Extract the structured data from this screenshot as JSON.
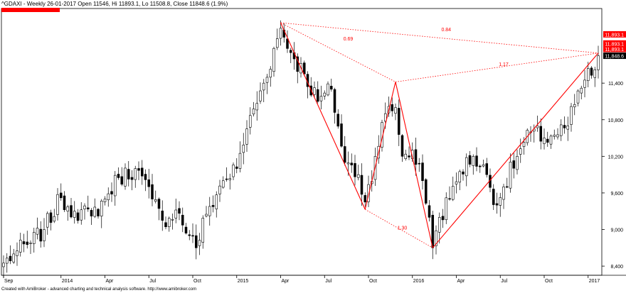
{
  "header": {
    "title": "^GDAXI - Weekly 26-01-2017 Open 11546, Hi 11893.1, Lo 11508.8, Close 11848.6 (1.9%)"
  },
  "footer": {
    "credit": "Created with AmiBroker - advanced charting and technical analysis software. http://www.amibroker.com"
  },
  "colors": {
    "up": "#ffffff",
    "down": "#000000",
    "pattern": "#ff0000",
    "price_tag_bg": "#000000",
    "price_tag_fg": "#ffffff"
  },
  "chart_data": {
    "type": "candlestick",
    "title": "^GDAXI - Weekly",
    "ylim": [
      8250,
      12600
    ],
    "y_ticks": [
      8400,
      9000,
      9600,
      10200,
      10800,
      11400
    ],
    "y_tick_labels": [
      "8,400",
      "9,000",
      "9,600",
      "10,200",
      "10,800",
      "11,400"
    ],
    "x_labels": [
      {
        "label": "Sep",
        "t": 0
      },
      {
        "label": "2014",
        "t": 17
      },
      {
        "label": "Apr",
        "t": 30
      },
      {
        "label": "Jul",
        "t": 43
      },
      {
        "label": "Oct",
        "t": 56
      },
      {
        "label": "2015",
        "t": 69
      },
      {
        "label": "Apr",
        "t": 82
      },
      {
        "label": "Jul",
        "t": 95
      },
      {
        "label": "Oct",
        "t": 108
      },
      {
        "label": "2016",
        "t": 121
      },
      {
        "label": "Apr",
        "t": 134
      },
      {
        "label": "Jul",
        "t": 147
      },
      {
        "label": "Oct",
        "t": 160
      },
      {
        "label": "2017",
        "t": 173
      }
    ],
    "n_bars": 177,
    "close_anchors": [
      [
        0,
        8450
      ],
      [
        3,
        8600
      ],
      [
        8,
        8780
      ],
      [
        12,
        9000
      ],
      [
        17,
        9520
      ],
      [
        21,
        9300
      ],
      [
        26,
        9220
      ],
      [
        30,
        9500
      ],
      [
        34,
        9850
      ],
      [
        39,
        10000
      ],
      [
        44,
        9500
      ],
      [
        47,
        9150
      ],
      [
        51,
        9320
      ],
      [
        55,
        8900
      ],
      [
        57,
        8700
      ],
      [
        60,
        9250
      ],
      [
        65,
        9800
      ],
      [
        69,
        10000
      ],
      [
        72,
        10650
      ],
      [
        77,
        11400
      ],
      [
        82,
        12300
      ],
      [
        85,
        11900
      ],
      [
        89,
        11550
      ],
      [
        93,
        11100
      ],
      [
        97,
        11300
      ],
      [
        101,
        10100
      ],
      [
        105,
        9900
      ],
      [
        107,
        9450
      ],
      [
        110,
        10200
      ],
      [
        113,
        10900
      ],
      [
        116,
        11000
      ],
      [
        118,
        10200
      ],
      [
        121,
        10300
      ],
      [
        124,
        9800
      ],
      [
        126,
        9200
      ],
      [
        127,
        8700
      ],
      [
        129,
        9200
      ],
      [
        132,
        9500
      ],
      [
        135,
        9950
      ],
      [
        139,
        10200
      ],
      [
        143,
        9900
      ],
      [
        146,
        9400
      ],
      [
        148,
        9700
      ],
      [
        152,
        10200
      ],
      [
        156,
        10600
      ],
      [
        160,
        10500
      ],
      [
        163,
        10550
      ],
      [
        167,
        10700
      ],
      [
        169,
        11050
      ],
      [
        172,
        11450
      ],
      [
        175,
        11620
      ],
      [
        176,
        11849
      ]
    ],
    "pattern": {
      "X": {
        "t": 82,
        "price": 12390
      },
      "A": {
        "t": 107,
        "price": 9330
      },
      "B": {
        "t": 116,
        "price": 11420
      },
      "C": {
        "t": 127,
        "price": 8700
      },
      "D": {
        "t": 176,
        "price": 11893
      }
    },
    "ratio_labels": [
      {
        "text": "0.69",
        "t": 102,
        "price": 12100
      },
      {
        "text": "0.84",
        "t": 131,
        "price": 12250
      },
      {
        "text": "1.17",
        "t": 148,
        "price": 11680
      },
      {
        "text": "1.30",
        "t": 118,
        "price": 9000
      }
    ],
    "price_tags": [
      {
        "text": "11,893.1",
        "price": 12200,
        "color": "#ff0000"
      },
      {
        "text": "11,893.1",
        "price": 12050,
        "color": "#ff0000"
      },
      {
        "text": "11,893.1",
        "price": 11960,
        "color": "#ff0000"
      },
      {
        "text": "11,848.6",
        "price": 11849,
        "color": "#000000"
      }
    ]
  }
}
